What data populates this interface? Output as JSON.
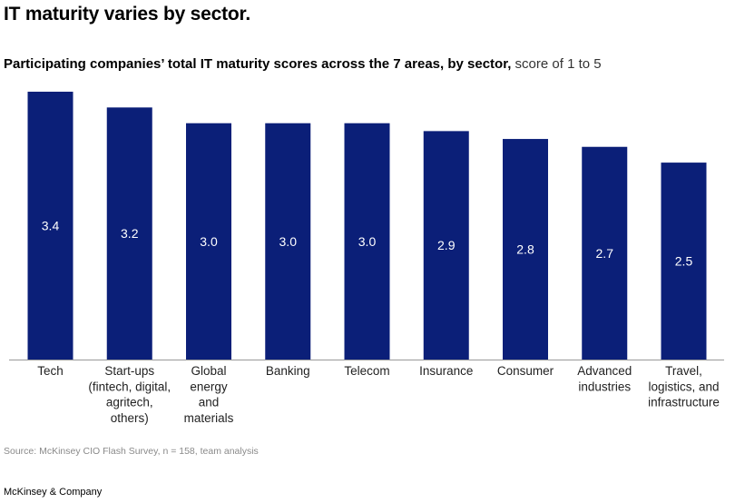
{
  "headline": "IT maturity varies by sector.",
  "subtitle": {
    "bold": "Participating companies’ total IT maturity scores across the 7 areas, by sector,",
    "normal": " score of 1 to 5"
  },
  "source": "Source: McKinsey CIO Flash Survey, n = 158, team analysis",
  "brand": "McKinsey & Company",
  "colors": {
    "bar": "#0b1f78",
    "label": "#ffffff",
    "axis": "#999999"
  },
  "chart_data": {
    "type": "bar",
    "categories": [
      [
        "Tech"
      ],
      [
        "Start-ups",
        "(fintech, digital,",
        "agritech,",
        "others)"
      ],
      [
        "Global",
        "energy",
        "and",
        "materials"
      ],
      [
        "Banking"
      ],
      [
        "Telecom"
      ],
      [
        "Insurance"
      ],
      [
        "Consumer"
      ],
      [
        "Advanced",
        "industries"
      ],
      [
        "Travel,",
        "logistics, and",
        "infrastructure"
      ]
    ],
    "values": [
      3.4,
      3.2,
      3.0,
      3.0,
      3.0,
      2.9,
      2.8,
      2.7,
      2.5
    ],
    "labels": [
      "3.4",
      "3.2",
      "3.0",
      "3.0",
      "3.0",
      "2.9",
      "2.8",
      "2.7",
      "2.5"
    ],
    "ylim": [
      0,
      3.4
    ],
    "grid": false,
    "legend": "none"
  }
}
